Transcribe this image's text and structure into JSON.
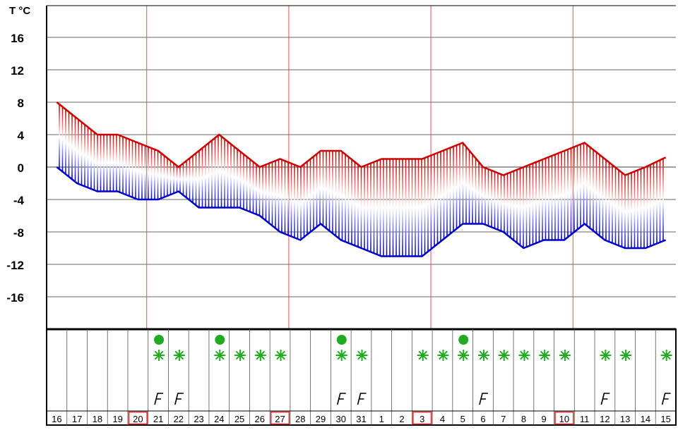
{
  "chart_data": {
    "type": "area",
    "ylabel": "T °C",
    "ylim": [
      -20,
      20
    ],
    "yticks": [
      16,
      12,
      8,
      4,
      0,
      -4,
      -8,
      -12,
      -16
    ],
    "grid": true,
    "days": [
      "16",
      "17",
      "18",
      "19",
      "20",
      "21",
      "22",
      "23",
      "24",
      "25",
      "26",
      "27",
      "28",
      "29",
      "30",
      "31",
      "1",
      "2",
      "3",
      "4",
      "5",
      "6",
      "7",
      "8",
      "9",
      "10",
      "11",
      "12",
      "13",
      "14",
      "15"
    ],
    "highlighted_days": [
      "20",
      "27",
      "3",
      "10"
    ],
    "week_separator_days": [
      "21",
      "28",
      "4",
      "11"
    ],
    "series": [
      {
        "name": "",
        "color": "#cc0000",
        "values": [
          8,
          6,
          4,
          4,
          3,
          2,
          0,
          2,
          4,
          2,
          0,
          1,
          0,
          2,
          2,
          0,
          1,
          1,
          1,
          2,
          3,
          0,
          -1,
          0,
          1,
          2,
          3,
          1,
          -1,
          0,
          1.2
        ]
      },
      {
        "name": "",
        "color": "#0000cc",
        "values": [
          0,
          -2,
          -3,
          -3,
          -4,
          -4,
          -3,
          -5,
          -5,
          -5,
          -6,
          -8,
          -9,
          -7,
          -9,
          -10,
          -11,
          -11,
          -11,
          -9,
          -7,
          -7,
          -8,
          -10,
          -9,
          -9,
          -7,
          -9,
          -10,
          -10,
          -9
        ]
      }
    ],
    "precipitation": {
      "rain_days": [
        "21",
        "24",
        "30",
        "5"
      ],
      "snow_days": [
        "21",
        "22",
        "24",
        "25",
        "26",
        "27",
        "30",
        "31",
        "3",
        "4",
        "5",
        "6",
        "7",
        "8",
        "9",
        "10",
        "12",
        "13",
        "15"
      ],
      "wind_days": [
        "21",
        "22",
        "30",
        "31",
        "6",
        "12",
        "15"
      ],
      "colors": {
        "rain": "#22aa22",
        "snow": "#22aa22",
        "wind": "#000000"
      },
      "icons": {
        "rain": "rain-dot-icon",
        "snow": "snowflake-icon",
        "wind": "wind-flag-icon"
      }
    }
  }
}
